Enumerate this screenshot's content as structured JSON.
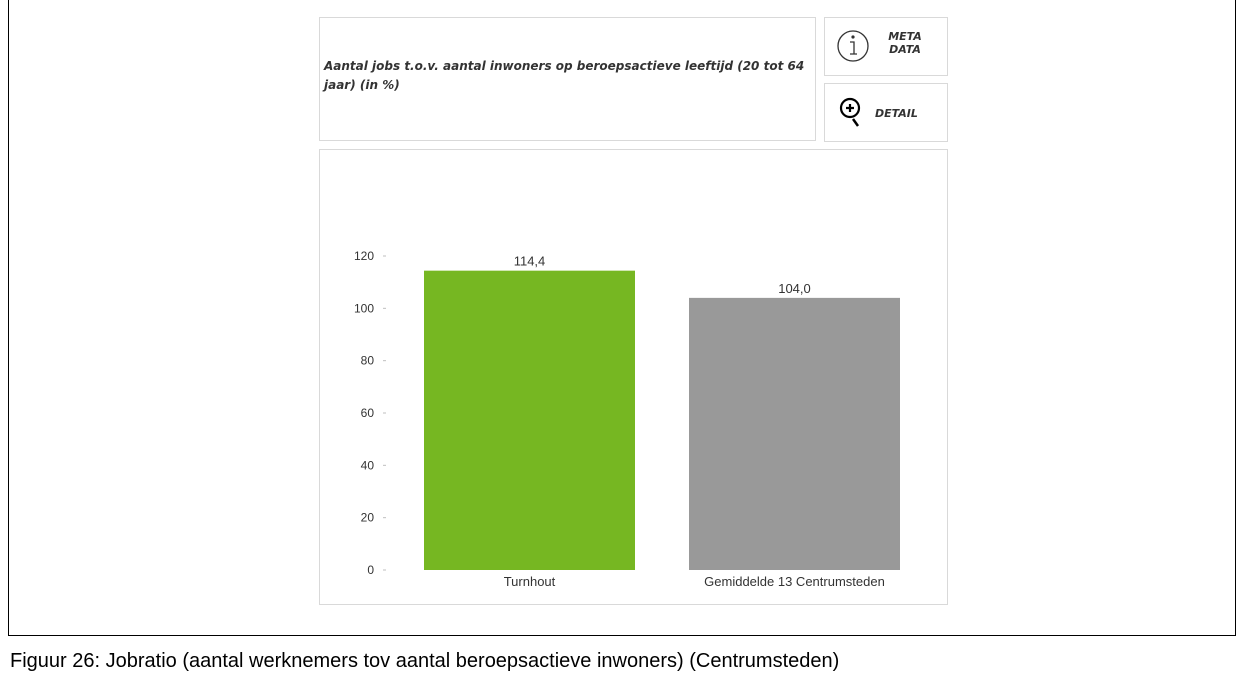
{
  "panel": {
    "title": "Aantal jobs t.o.v. aantal inwoners op beroepsactieve leeftijd (20 tot 64 jaar) (in %)",
    "meta_button": {
      "line1": "META",
      "line2": "DATA",
      "icon": "info-icon"
    },
    "detail_button": {
      "label": "DETAIL",
      "icon": "zoom-in-icon"
    }
  },
  "chart_data": {
    "type": "bar",
    "title": "Aantal jobs t.o.v. aantal inwoners op beroepsactieve leeftijd (20 tot 64 jaar) (in %)",
    "categories": [
      "Turnhout",
      "Gemiddelde 13 Centrumsteden"
    ],
    "values": [
      114.4,
      104.0
    ],
    "value_labels": [
      "114,4",
      "104,0"
    ],
    "colors": [
      "#76b722",
      "#999999"
    ],
    "yticks": [
      0,
      20,
      40,
      60,
      80,
      100,
      120
    ],
    "ylim": [
      0,
      120
    ],
    "xlabel": "",
    "ylabel": "",
    "grid": false,
    "legend": "none"
  },
  "caption": "Figuur 26: Jobratio (aantal werknemers tov aantal beroepsactieve inwoners) (Centrumsteden)"
}
